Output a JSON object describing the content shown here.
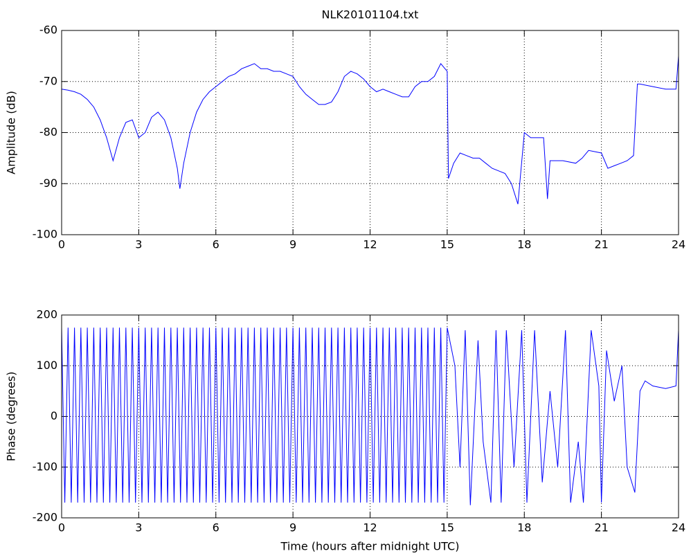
{
  "chart_data": [
    {
      "type": "line",
      "title": "NLK20101104.txt",
      "y_label": "Amplitude (dB)",
      "xlim": [
        0,
        24
      ],
      "xticks": [
        0,
        3,
        6,
        9,
        12,
        15,
        18,
        21,
        24
      ],
      "ylim": [
        -100,
        -60
      ],
      "yticks": [
        -100,
        -90,
        -80,
        -70,
        -60
      ],
      "grid": true,
      "series": [
        {
          "color": "#0000ff",
          "x": [
            0,
            0.25,
            0.5,
            0.75,
            1,
            1.25,
            1.5,
            1.75,
            2,
            2.25,
            2.5,
            2.75,
            3,
            3.25,
            3.5,
            3.75,
            4,
            4.25,
            4.5,
            4.6,
            4.75,
            5,
            5.25,
            5.5,
            5.75,
            6,
            6.25,
            6.5,
            6.75,
            7,
            7.25,
            7.5,
            7.75,
            8,
            8.25,
            8.5,
            8.75,
            9,
            9.25,
            9.5,
            9.75,
            10,
            10.25,
            10.5,
            10.75,
            11,
            11.25,
            11.5,
            11.75,
            12,
            12.25,
            12.5,
            12.75,
            13,
            13.25,
            13.5,
            13.75,
            14,
            14.25,
            14.5,
            14.75,
            15,
            15.05,
            15.25,
            15.5,
            15.75,
            16,
            16.25,
            16.5,
            16.75,
            17,
            17.25,
            17.5,
            17.75,
            18,
            18.25,
            18.5,
            18.75,
            18.9,
            19,
            19.5,
            20,
            20.25,
            20.5,
            21,
            21.25,
            21.5,
            21.75,
            22,
            22.25,
            22.4,
            22.5,
            23,
            23.5,
            23.9,
            24
          ],
          "values": [
            -71.5,
            -71.7,
            -72,
            -72.5,
            -73.5,
            -75,
            -77.5,
            -81,
            -85.5,
            -81,
            -78,
            -77.5,
            -81,
            -80,
            -77,
            -76,
            -77.5,
            -81,
            -87,
            -91,
            -86,
            -80,
            -76,
            -73.5,
            -72,
            -71,
            -70,
            -69,
            -68.5,
            -67.5,
            -67,
            -66.5,
            -67.5,
            -67.5,
            -68,
            -68,
            -68.5,
            -69,
            -71,
            -72.5,
            -73.5,
            -74.5,
            -74.5,
            -74,
            -72,
            -69,
            -68,
            -68.5,
            -69.5,
            -71,
            -72,
            -71.5,
            -72,
            -72.5,
            -73,
            -73,
            -71,
            -70,
            -70,
            -69,
            -66.5,
            -68,
            -89,
            -86,
            -84,
            -84.5,
            -85,
            -85,
            -86,
            -87,
            -87.5,
            -88,
            -90,
            -94,
            -80,
            -81,
            -81,
            -81,
            -93,
            -85.5,
            -85.5,
            -86,
            -85,
            -83.5,
            -84,
            -87,
            -86.5,
            -86,
            -85.5,
            -84.5,
            -70.5,
            -70.5,
            -71,
            -71.5,
            -71.5,
            -65
          ]
        }
      ]
    },
    {
      "type": "line",
      "x_label": "Time (hours after midnight UTC)",
      "y_label": "Phase (degrees)",
      "xlim": [
        0,
        24
      ],
      "xticks": [
        0,
        3,
        6,
        9,
        12,
        15,
        18,
        21,
        24
      ],
      "ylim": [
        -200,
        200
      ],
      "yticks": [
        -200,
        -100,
        0,
        100,
        200
      ],
      "grid": true,
      "series": [
        {
          "color": "#0000ff",
          "x": [
            0,
            0.125,
            0.25,
            0.375,
            0.5,
            0.625,
            0.75,
            0.875,
            1,
            1.125,
            1.25,
            1.375,
            1.5,
            1.625,
            1.75,
            1.875,
            2,
            2.125,
            2.25,
            2.375,
            2.5,
            2.625,
            2.75,
            2.875,
            3,
            3.125,
            3.25,
            3.375,
            3.5,
            3.625,
            3.75,
            3.875,
            4,
            4.125,
            4.25,
            4.375,
            4.5,
            4.625,
            4.75,
            4.875,
            5,
            5.125,
            5.25,
            5.375,
            5.5,
            5.625,
            5.75,
            5.875,
            6,
            6.125,
            6.25,
            6.375,
            6.5,
            6.625,
            6.75,
            6.875,
            7,
            7.125,
            7.25,
            7.375,
            7.5,
            7.625,
            7.75,
            7.875,
            8,
            8.125,
            8.25,
            8.375,
            8.5,
            8.625,
            8.75,
            8.875,
            9,
            9.125,
            9.25,
            9.375,
            9.5,
            9.625,
            9.75,
            9.875,
            10,
            10.125,
            10.25,
            10.375,
            10.5,
            10.625,
            10.75,
            10.875,
            11,
            11.125,
            11.25,
            11.375,
            11.5,
            11.625,
            11.75,
            11.875,
            12,
            12.125,
            12.25,
            12.375,
            12.5,
            12.625,
            12.75,
            12.875,
            13,
            13.125,
            13.25,
            13.375,
            13.5,
            13.625,
            13.75,
            13.875,
            14,
            14.125,
            14.25,
            14.375,
            14.5,
            14.625,
            14.75,
            14.875,
            15,
            15.3,
            15.5,
            15.7,
            15.9,
            16.2,
            16.4,
            16.7,
            16.9,
            17.1,
            17.3,
            17.6,
            17.9,
            18.1,
            18.4,
            18.7,
            19,
            19.3,
            19.6,
            19.8,
            20.1,
            20.3,
            20.6,
            20.9,
            21,
            21.2,
            21.5,
            21.8,
            22,
            22.3,
            22.5,
            22.7,
            23,
            23.5,
            23.9,
            24
          ],
          "values": [
            175,
            -170,
            175,
            -170,
            175,
            -170,
            175,
            -170,
            175,
            -170,
            175,
            -170,
            175,
            -170,
            175,
            -170,
            175,
            -170,
            175,
            -170,
            175,
            -170,
            175,
            -170,
            175,
            -170,
            175,
            -170,
            175,
            -170,
            175,
            -170,
            175,
            -170,
            175,
            -170,
            175,
            -170,
            175,
            -170,
            175,
            -170,
            175,
            -170,
            175,
            -170,
            175,
            -170,
            175,
            -170,
            175,
            -170,
            175,
            -170,
            175,
            -170,
            175,
            -170,
            175,
            -170,
            175,
            -170,
            175,
            -170,
            175,
            -170,
            175,
            -170,
            175,
            -170,
            175,
            -170,
            175,
            -170,
            175,
            -170,
            175,
            -170,
            175,
            -170,
            175,
            -170,
            175,
            -170,
            175,
            -170,
            175,
            -170,
            175,
            -170,
            175,
            -170,
            175,
            -170,
            175,
            -170,
            175,
            -170,
            175,
            -170,
            175,
            -170,
            175,
            -170,
            175,
            -170,
            175,
            -170,
            175,
            -170,
            175,
            -170,
            175,
            -170,
            175,
            -170,
            175,
            -170,
            175,
            -170,
            175,
            100,
            -100,
            170,
            -175,
            150,
            -50,
            -170,
            170,
            -170,
            170,
            -100,
            170,
            -170,
            170,
            -130,
            50,
            -100,
            170,
            -170,
            -50,
            -170,
            170,
            60,
            -170,
            130,
            30,
            100,
            -100,
            -150,
            50,
            70,
            60,
            55,
            60,
            170
          ]
        }
      ]
    }
  ]
}
